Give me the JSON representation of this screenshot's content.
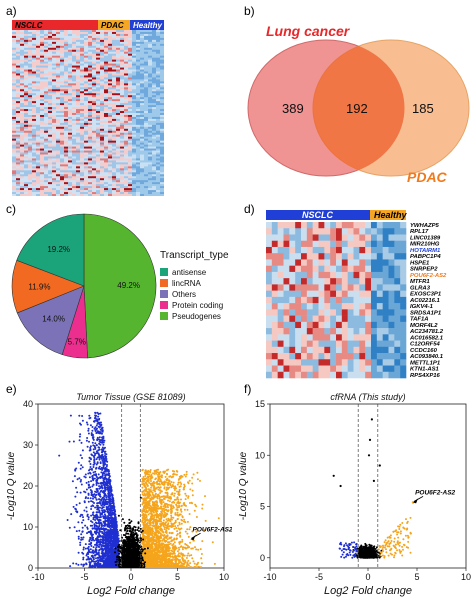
{
  "panels": {
    "a": {
      "label": "a)",
      "groups": [
        {
          "name": "NSCLC",
          "color": "#e8282a"
        },
        {
          "name": "PDAC",
          "color": "#f5a623"
        },
        {
          "name": "Healthy",
          "color": "#1f3fd6"
        }
      ]
    },
    "b": {
      "label": "b)",
      "sets": [
        {
          "name": "Lung cancer",
          "color": "#e8282a"
        },
        {
          "name": "PDAC",
          "color": "#f07a1e"
        }
      ],
      "counts": {
        "left_only": "389",
        "overlap": "192",
        "right_only": "185"
      }
    },
    "c": {
      "label": "c)",
      "legend_title": "Transcript_type",
      "chart_data": {
        "type": "pie",
        "slices": [
          {
            "name": "antisense",
            "label": "19.2%",
            "value": 19.2,
            "color": "#1ba37a"
          },
          {
            "name": "lincRNA",
            "label": "11.9%",
            "value": 11.9,
            "color": "#f26a22"
          },
          {
            "name": "Others",
            "label": "14.0%",
            "value": 14.0,
            "color": "#7b72b8"
          },
          {
            "name": "Protein coding",
            "label": "5.7%",
            "value": 5.7,
            "color": "#ec2f8e"
          },
          {
            "name": "Pseudogenes",
            "label": "49.2%",
            "value": 49.2,
            "color": "#55b52e"
          }
        ]
      }
    },
    "d": {
      "label": "d)",
      "groups": [
        {
          "name": "NSCLC",
          "color": "#1f3fd6"
        },
        {
          "name": "Healthy",
          "color": "#f5a623"
        }
      ],
      "genes": [
        {
          "name": "YWHAZP5",
          "color": "#000000"
        },
        {
          "name": "RPL17",
          "color": "#000000"
        },
        {
          "name": "LINC01389",
          "color": "#000000"
        },
        {
          "name": "MIR210HG",
          "color": "#000000"
        },
        {
          "name": "HOTAIRM1",
          "color": "#1f3fd6"
        },
        {
          "name": "PABPC1P4",
          "color": "#000000"
        },
        {
          "name": "HSPE1",
          "color": "#000000"
        },
        {
          "name": "SNRPEP2",
          "color": "#000000"
        },
        {
          "name": "POU6F2-AS2",
          "color": "#f07a1e"
        },
        {
          "name": "MTFR1",
          "color": "#000000"
        },
        {
          "name": "GLRA3",
          "color": "#000000"
        },
        {
          "name": "EXOSC3P1",
          "color": "#000000"
        },
        {
          "name": "AC02216.1",
          "color": "#000000"
        },
        {
          "name": "IGKV4-1",
          "color": "#000000"
        },
        {
          "name": "SRDSA1P1",
          "color": "#000000"
        },
        {
          "name": "TAF1A",
          "color": "#000000"
        },
        {
          "name": "MORF4L2",
          "color": "#000000"
        },
        {
          "name": "AC234781.2",
          "color": "#000000"
        },
        {
          "name": "AC016582.1",
          "color": "#000000"
        },
        {
          "name": "C12ORF54",
          "color": "#000000"
        },
        {
          "name": "CCDC160",
          "color": "#000000"
        },
        {
          "name": "AC093840.1",
          "color": "#000000"
        },
        {
          "name": "METTL1P1",
          "color": "#000000"
        },
        {
          "name": "KTN1-AS1",
          "color": "#000000"
        },
        {
          "name": "RPS4XP16",
          "color": "#000000"
        }
      ]
    },
    "e": {
      "label": "e)",
      "chart_data": {
        "type": "scatter",
        "title": "Tumor Tissue (GSE 81089)",
        "xlabel": "Log2 Fold change",
        "ylabel": "-Log10 Q value",
        "xlim": [
          -10,
          10
        ],
        "ylim": [
          0,
          40
        ],
        "xticks": [
          -10,
          -5,
          0,
          5,
          10
        ],
        "yticks": [
          0,
          10,
          20,
          30,
          40
        ],
        "thresholds_x": [
          -1,
          1
        ],
        "down_color": "#1f2fd0",
        "up_color": "#f5a51c",
        "ns_color": "#000000",
        "annotation": {
          "text": "POU6F2-AS2",
          "x": 6.4,
          "y": 7.5
        }
      }
    },
    "f": {
      "label": "f)",
      "chart_data": {
        "type": "scatter",
        "title": "cfRNA (This study)",
        "xlabel": "Log2 Fold change",
        "ylabel": "-Log10 Q value",
        "xlim": [
          -10,
          10
        ],
        "ylim": [
          -1,
          15
        ],
        "xticks": [
          -10,
          -5,
          0,
          5,
          10
        ],
        "yticks": [
          0,
          5,
          10,
          15
        ],
        "thresholds_x": [
          -1,
          1
        ],
        "down_color": "#1f2fd0",
        "up_color": "#f5a51c",
        "ns_color": "#000000",
        "annotation": {
          "text": "POU6F2-AS2",
          "x": 4.6,
          "y": 5.6
        }
      }
    }
  }
}
